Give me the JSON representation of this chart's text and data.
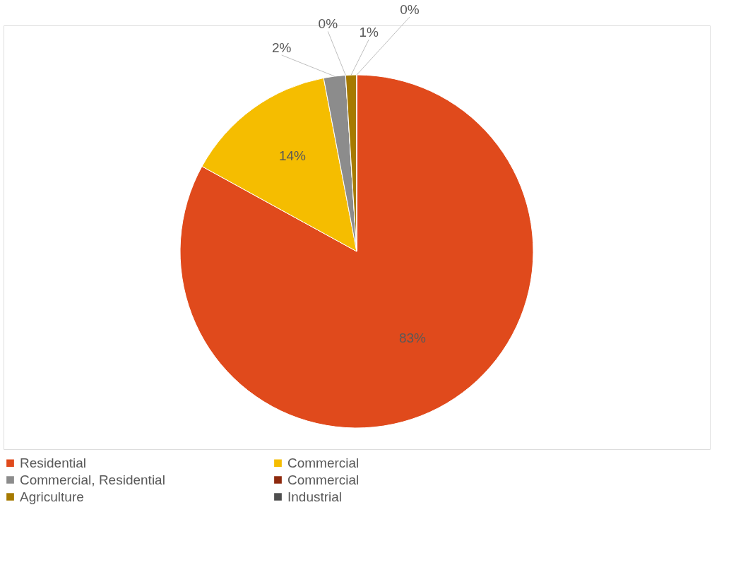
{
  "chart_data": {
    "type": "pie",
    "categories": [
      "Residential",
      "Commercial",
      "Commercial, Residential",
      "Commercial",
      "Agriculture",
      "Industrial"
    ],
    "values": [
      83,
      14,
      2,
      0,
      1,
      0
    ],
    "colors": [
      "#e04a1c",
      "#f5bd00",
      "#8c8c8c",
      "#8e2a0e",
      "#a67a00",
      "#4f4f4f"
    ],
    "value_labels": [
      "83%",
      "14%",
      "2%",
      "0%",
      "1%",
      "0%"
    ],
    "legend": "bottom"
  }
}
